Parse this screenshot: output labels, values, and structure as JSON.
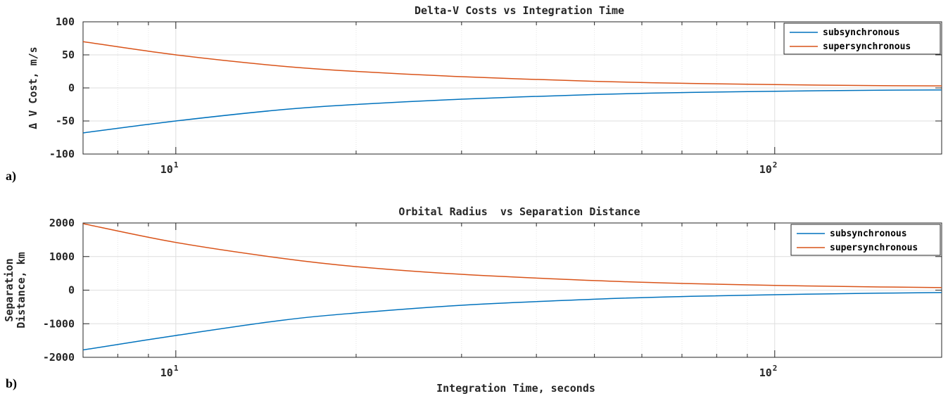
{
  "chart_data": [
    {
      "type": "line",
      "panel_label": "a)",
      "title": "Delta-V Costs vs Integration Time",
      "xlabel": "",
      "ylabel": "Δ V Cost, m/s",
      "xscale": "log",
      "xlim": [
        7,
        190
      ],
      "ylim": [
        -100,
        100
      ],
      "yticks": [
        -100,
        -50,
        0,
        50,
        100
      ],
      "ytick_labels": [
        "-100",
        "-50",
        "0",
        "50",
        "100"
      ],
      "xtick_labels": [
        {
          "value": 10,
          "base": "10",
          "exp": "1"
        },
        {
          "value": 100,
          "base": "10",
          "exp": "2"
        }
      ],
      "grid": true,
      "legend_placement": "top-right",
      "x": [
        7,
        10,
        15,
        20,
        30,
        50,
        70,
        100,
        150,
        190
      ],
      "series": [
        {
          "name": "subsynchronous",
          "color": "#0072BD",
          "values": [
            -68,
            -50,
            -33,
            -25,
            -17,
            -10,
            -7,
            -5,
            -3.5,
            -3
          ]
        },
        {
          "name": "supersynchronous",
          "color": "#D95319",
          "values": [
            70,
            50,
            33,
            25,
            17,
            10,
            7,
            5,
            3.5,
            3
          ]
        }
      ]
    },
    {
      "type": "line",
      "panel_label": "b)",
      "title": "Orbital Radius  vs Separation Distance",
      "xlabel": "Integration Time, seconds",
      "ylabel": [
        "Separation",
        "Distance, km"
      ],
      "xscale": "log",
      "xlim": [
        7,
        190
      ],
      "ylim": [
        -2000,
        2000
      ],
      "yticks": [
        -2000,
        -1000,
        0,
        1000,
        2000
      ],
      "ytick_labels": [
        "-2000",
        "-1000",
        "0",
        "1000",
        "2000"
      ],
      "xtick_labels": [
        {
          "value": 10,
          "base": "10",
          "exp": "1"
        },
        {
          "value": 100,
          "base": "10",
          "exp": "2"
        }
      ],
      "grid": true,
      "legend_placement": "top-right",
      "x": [
        7,
        10,
        15,
        20,
        30,
        50,
        70,
        100,
        150,
        190
      ],
      "series": [
        {
          "name": "subsynchronous",
          "color": "#0072BD",
          "values": [
            -1780,
            -1350,
            -900,
            -680,
            -450,
            -270,
            -190,
            -135,
            -90,
            -70
          ]
        },
        {
          "name": "supersynchronous",
          "color": "#D95319",
          "values": [
            1980,
            1420,
            950,
            700,
            470,
            285,
            200,
            140,
            95,
            75
          ]
        }
      ]
    }
  ]
}
